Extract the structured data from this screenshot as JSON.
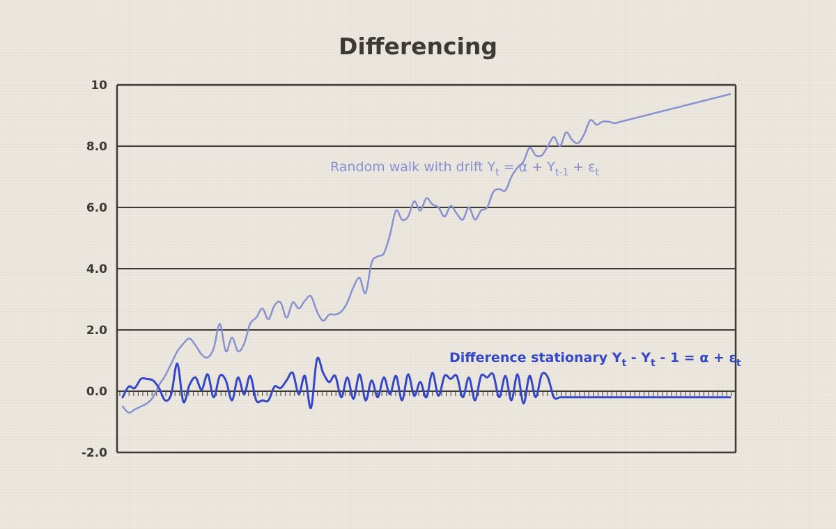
{
  "chart_data": {
    "type": "line",
    "title": "Differencing",
    "xlabel": "",
    "ylabel": "",
    "ylim": [
      -2,
      10
    ],
    "yticks": [
      {
        "value": 10,
        "label": "10"
      },
      {
        "value": 8,
        "label": "8.0"
      },
      {
        "value": 6,
        "label": "6.0"
      },
      {
        "value": 4,
        "label": "4.0"
      },
      {
        "value": 2,
        "label": "2.0"
      },
      {
        "value": 0,
        "label": "0.0"
      },
      {
        "value": -2,
        "label": "-2.0"
      }
    ],
    "grid": true,
    "series": [
      {
        "name": "Random walk with drift Yt = α + Yt-1 + εt",
        "label_parts": {
          "pre": "Random walk with drift Y",
          "s1": "t",
          "mid": " = α + Y",
          "s2": "t-1",
          "post": " + ε",
          "s3": "t"
        },
        "color": "#8790d0",
        "x": [
          0,
          1,
          2,
          3,
          4,
          5,
          6,
          7,
          8,
          9,
          10,
          11,
          12,
          13,
          14,
          15,
          16,
          17,
          18,
          19,
          20,
          21,
          22,
          23,
          24,
          25,
          26,
          27,
          28,
          29,
          30,
          31,
          32,
          33,
          34,
          35,
          36,
          37,
          38,
          39,
          40,
          41,
          42,
          43,
          44,
          45,
          46,
          47,
          48,
          49,
          50,
          51,
          52,
          53,
          54,
          55,
          56,
          57,
          58,
          59,
          60,
          61,
          62,
          63,
          64,
          65,
          66,
          67,
          68,
          69,
          70,
          71,
          72,
          73,
          74,
          75,
          76,
          77,
          78,
          79,
          80,
          81,
          82,
          83,
          84,
          85,
          86,
          87,
          88,
          89,
          90,
          91,
          92,
          93,
          94,
          95,
          96,
          97,
          98,
          99,
          100
        ],
        "values": [
          -0.5,
          -0.7,
          -0.6,
          -0.5,
          -0.4,
          -0.2,
          0.2,
          0.5,
          0.9,
          1.3,
          1.55,
          1.72,
          1.5,
          1.2,
          1.1,
          1.4,
          2.2,
          1.3,
          1.75,
          1.3,
          1.55,
          2.2,
          2.4,
          2.7,
          2.35,
          2.8,
          2.9,
          2.4,
          2.9,
          2.7,
          2.95,
          3.1,
          2.6,
          2.3,
          2.5,
          2.5,
          2.6,
          2.9,
          3.4,
          3.7,
          3.2,
          4.2,
          4.4,
          4.5,
          5.1,
          5.9,
          5.6,
          5.7,
          6.2,
          5.9,
          6.3,
          6.1,
          6.0,
          5.7,
          6.05,
          5.8,
          5.6,
          6.0,
          5.6,
          5.9,
          6.0,
          6.5,
          6.6,
          6.55,
          7.0,
          7.3,
          7.5,
          7.95,
          7.7,
          7.7,
          8.0,
          8.3,
          8.0,
          8.45,
          8.2,
          8.1,
          8.4,
          8.85,
          8.7,
          8.8,
          8.8,
          8.75,
          8.8,
          8.85,
          8.9,
          8.95,
          9.0,
          9.05,
          9.1,
          9.15,
          9.2,
          9.25,
          9.3,
          9.35,
          9.4,
          9.45,
          9.5,
          9.55,
          9.6,
          9.65,
          9.7
        ]
      },
      {
        "name": "Difference stationary Yt - Yt - 1 = α + εt",
        "label_parts": {
          "pre": "Difference stationary Y",
          "s1": "t",
          "mid": " - Y",
          "s2": "t",
          "post": " - 1 = α + ε",
          "s3": "t"
        },
        "color": "#3447c6",
        "x": [
          0,
          1,
          2,
          3,
          4,
          5,
          6,
          7,
          8,
          9,
          10,
          11,
          12,
          13,
          14,
          15,
          16,
          17,
          18,
          19,
          20,
          21,
          22,
          23,
          24,
          25,
          26,
          27,
          28,
          29,
          30,
          31,
          32,
          33,
          34,
          35,
          36,
          37,
          38,
          39,
          40,
          41,
          42,
          43,
          44,
          45,
          46,
          47,
          48,
          49,
          50,
          51,
          52,
          53,
          54,
          55,
          56,
          57,
          58,
          59,
          60,
          61,
          62,
          63,
          64,
          65,
          66,
          67,
          68,
          69,
          70,
          71,
          72,
          73,
          74,
          75,
          76,
          77,
          78,
          79,
          80,
          81,
          82,
          83,
          84,
          85,
          86,
          87,
          88,
          89,
          90,
          91,
          92,
          93,
          94,
          95,
          96,
          97,
          98,
          99,
          100
        ],
        "values": [
          -0.2,
          0.15,
          0.1,
          0.4,
          0.4,
          0.35,
          0.1,
          -0.3,
          -0.1,
          0.9,
          -0.35,
          0.2,
          0.45,
          0.05,
          0.55,
          -0.2,
          0.5,
          0.35,
          -0.3,
          0.45,
          -0.1,
          0.5,
          -0.3,
          -0.3,
          -0.3,
          0.15,
          0.1,
          0.35,
          0.6,
          -0.1,
          0.5,
          -0.55,
          1.05,
          0.6,
          0.3,
          0.5,
          -0.2,
          0.45,
          -0.25,
          0.55,
          -0.3,
          0.35,
          -0.2,
          0.45,
          -0.1,
          0.5,
          -0.3,
          0.55,
          -0.15,
          0.3,
          -0.2,
          0.6,
          -0.15,
          0.5,
          0.4,
          0.5,
          -0.2,
          0.45,
          -0.3,
          0.5,
          0.45,
          0.55,
          -0.2,
          0.5,
          -0.3,
          0.55,
          -0.4,
          0.5,
          -0.2,
          0.55,
          0.45,
          -0.2,
          -0.2,
          -0.2,
          -0.2,
          -0.2,
          -0.2,
          -0.2,
          -0.2,
          -0.2,
          -0.2,
          -0.2,
          -0.2,
          -0.2,
          -0.2,
          -0.2,
          -0.2,
          -0.2,
          -0.2,
          -0.2,
          -0.2,
          -0.2,
          -0.2,
          -0.2,
          -0.2,
          -0.2,
          -0.2,
          -0.2,
          -0.2,
          -0.2,
          -0.2
        ]
      }
    ]
  }
}
